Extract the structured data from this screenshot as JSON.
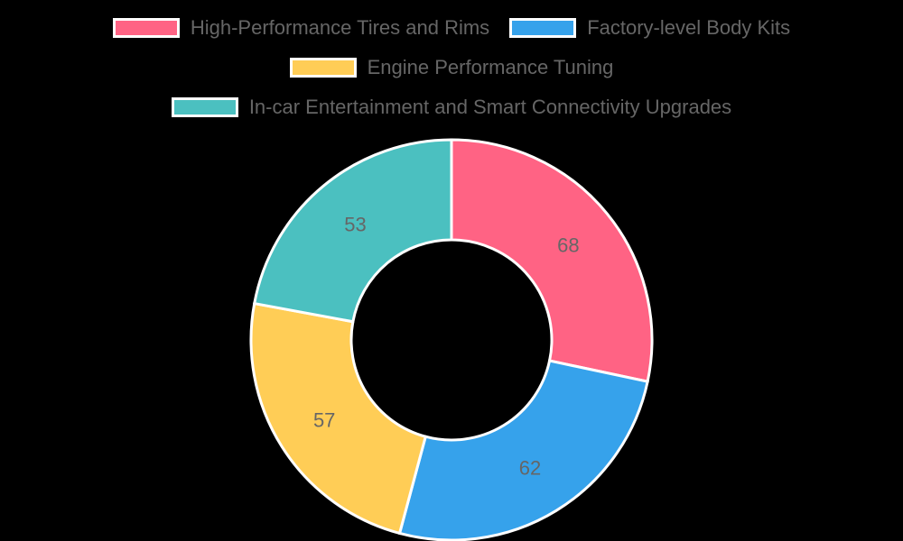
{
  "chart_data": {
    "type": "pie",
    "subtype": "doughnut",
    "title": "",
    "categories": [
      "High-Performance Tires and Rims",
      "Factory-level Body Kits",
      "Engine Performance Tuning",
      "In-car Entertainment and Smart Connectivity Upgrades"
    ],
    "values": [
      68,
      62,
      57,
      53
    ],
    "colors": [
      "#ff6384",
      "#36a2eb",
      "#ffcd56",
      "#4bc0c0"
    ],
    "legend_position": "top",
    "data_labels": true
  },
  "legend": {
    "items": [
      {
        "label": "High-Performance Tires and Rims",
        "color": "#ff6384"
      },
      {
        "label": "Factory-level Body Kits",
        "color": "#36a2eb"
      },
      {
        "label": "Engine Performance Tuning",
        "color": "#ffcd56"
      },
      {
        "label": "In-car Entertainment and Smart Connectivity Upgrades",
        "color": "#4bc0c0"
      }
    ]
  },
  "slice_labels": [
    "68",
    "62",
    "57",
    "53"
  ]
}
